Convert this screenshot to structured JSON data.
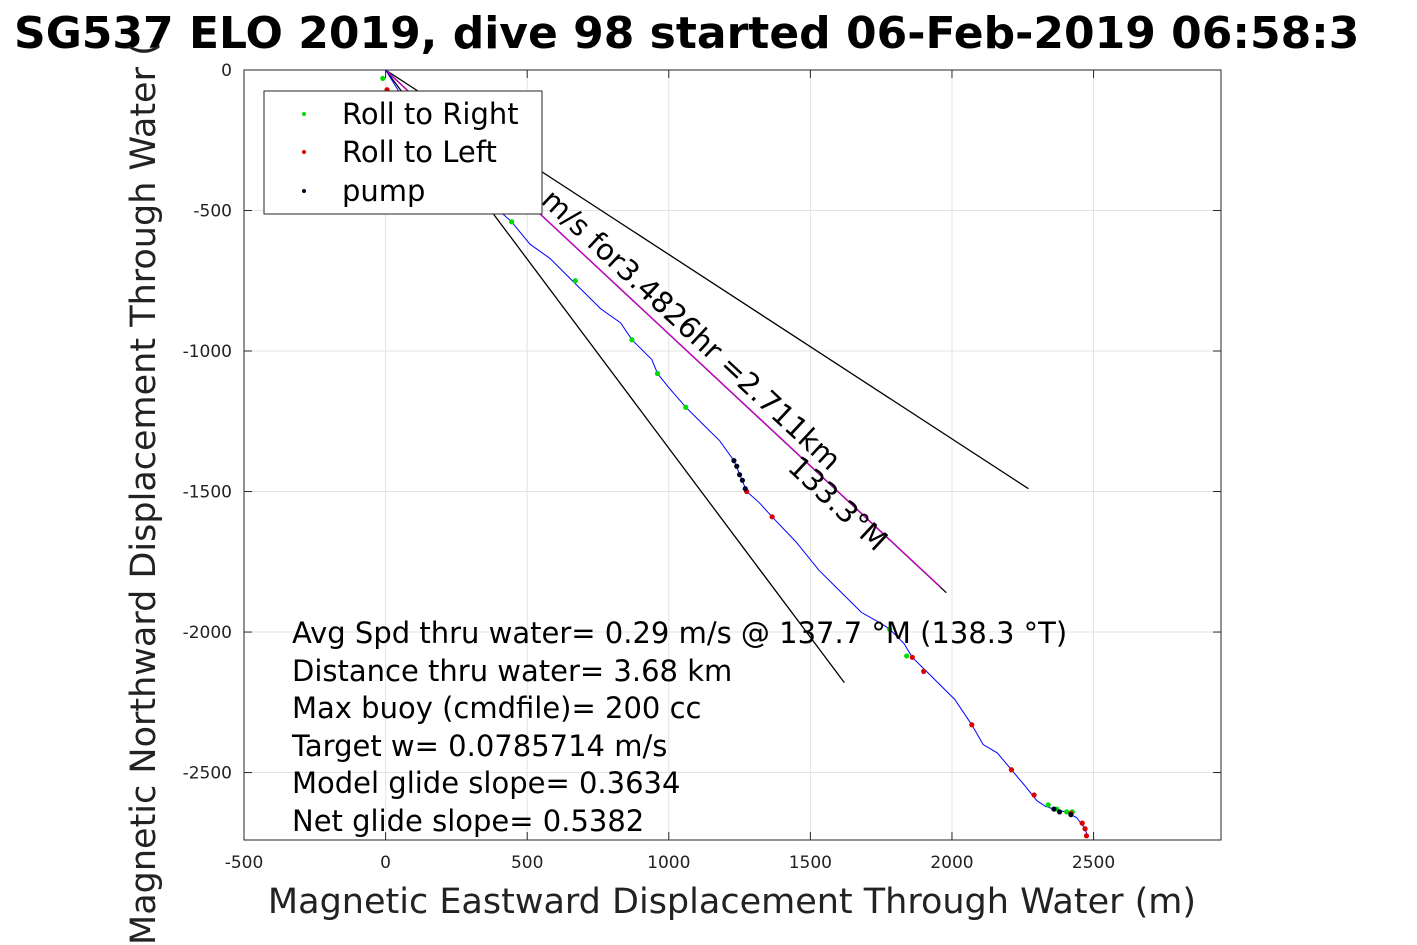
{
  "chart_data": {
    "type": "scatter",
    "title": "SG537 ELO 2019, dive 98 started 06-Feb-2019 06:58:3",
    "xlabel": "Magnetic Eastward Displacement Through Water (m)",
    "ylabel": "Magnetic Northward Displacement Through Water (",
    "xlim": [
      -500,
      2950
    ],
    "ylim": [
      -2740,
      0
    ],
    "xticks": [
      -500,
      0,
      500,
      1000,
      1500,
      2000,
      2500
    ],
    "xtick_labels": [
      "-500",
      "0",
      "500",
      "1000",
      "1500",
      "2000",
      "2500"
    ],
    "yticks": [
      0,
      -500,
      -1000,
      -1500,
      -2000,
      -2500
    ],
    "ytick_labels": [
      "0",
      "-500",
      "-1000",
      "-1500",
      "-2000",
      "-2500"
    ],
    "grid": true,
    "legend_position": "top-left",
    "track": {
      "color": "#0000ff",
      "x": [
        0,
        80,
        160,
        250,
        330,
        400,
        445,
        510,
        580,
        670,
        760,
        830,
        870,
        940,
        960,
        1000,
        1060,
        1120,
        1180,
        1230,
        1275,
        1320,
        1365,
        1450,
        1530,
        1600,
        1680,
        1750,
        1780,
        1830,
        1860,
        1910,
        1960,
        2010,
        2070,
        2110,
        2160,
        2210,
        2260,
        2300,
        2330,
        2360,
        2400,
        2440,
        2470,
        2480
      ],
      "y": [
        0,
        -130,
        -250,
        -340,
        -420,
        -500,
        -540,
        -620,
        -670,
        -760,
        -850,
        -900,
        -960,
        -1030,
        -1080,
        -1130,
        -1200,
        -1260,
        -1320,
        -1390,
        -1500,
        -1540,
        -1590,
        -1680,
        -1780,
        -1850,
        -1930,
        -1970,
        -1990,
        -2040,
        -2090,
        -2140,
        -2190,
        -2240,
        -2330,
        -2400,
        -2430,
        -2490,
        -2550,
        -2600,
        -2620,
        -2630,
        -2640,
        -2660,
        -2700,
        -2730
      ]
    },
    "series": [
      {
        "name": "Roll to Right",
        "color": "#00dd00",
        "x": [
          -10,
          445,
          670,
          870,
          960,
          1060,
          1780,
          1840,
          2340,
          2370,
          2405,
          2425
        ],
        "y": [
          -30,
          -540,
          -750,
          -960,
          -1080,
          -1200,
          -1990,
          -2085,
          -2615,
          -2630,
          -2640,
          -2640
        ]
      },
      {
        "name": "Roll to Left",
        "color": "#dd0000",
        "x": [
          5,
          1275,
          1365,
          1860,
          1900,
          2070,
          2210,
          2290,
          2420,
          2460,
          2470,
          2475
        ],
        "y": [
          -70,
          -1500,
          -1590,
          -2090,
          -2140,
          -2330,
          -2490,
          -2580,
          -2645,
          -2680,
          -2700,
          -2725
        ]
      },
      {
        "name": "pump",
        "color": "#000022",
        "x": [
          1230,
          1240,
          1250,
          1260,
          1270,
          2360,
          2380,
          2420
        ],
        "y": [
          -1390,
          -1410,
          -1440,
          -1460,
          -1490,
          -2630,
          -2640,
          -2650
        ]
      }
    ],
    "reference_lines": [
      {
        "color": "#000000",
        "x": [
          0,
          2270
        ],
        "y": [
          0,
          -1490
        ]
      },
      {
        "color": "#000000",
        "x": [
          0,
          1620
        ],
        "y": [
          0,
          -2180
        ]
      },
      {
        "color": "#000000",
        "x": [
          0,
          1980
        ],
        "y": [
          0,
          -1860
        ]
      },
      {
        "color": "#cc00cc",
        "x": [
          0,
          1960
        ],
        "y": [
          0,
          -1840
        ]
      }
    ],
    "annotations": {
      "line_label": "m/s for3.4826hr =2.711km",
      "line_label_clipped": "0",
      "heading_label": "133.3°M",
      "stats": [
        "Avg Spd thru water=  0.29 m/s @ 137.7 °M (138.3 °T)",
        "Distance thru water=  3.68 km",
        "Max buoy (cmdfile)= 200 cc",
        "Target w= 0.0785714 m/s",
        "Model glide slope= 0.3634",
        "Net glide slope= 0.5382"
      ]
    }
  }
}
